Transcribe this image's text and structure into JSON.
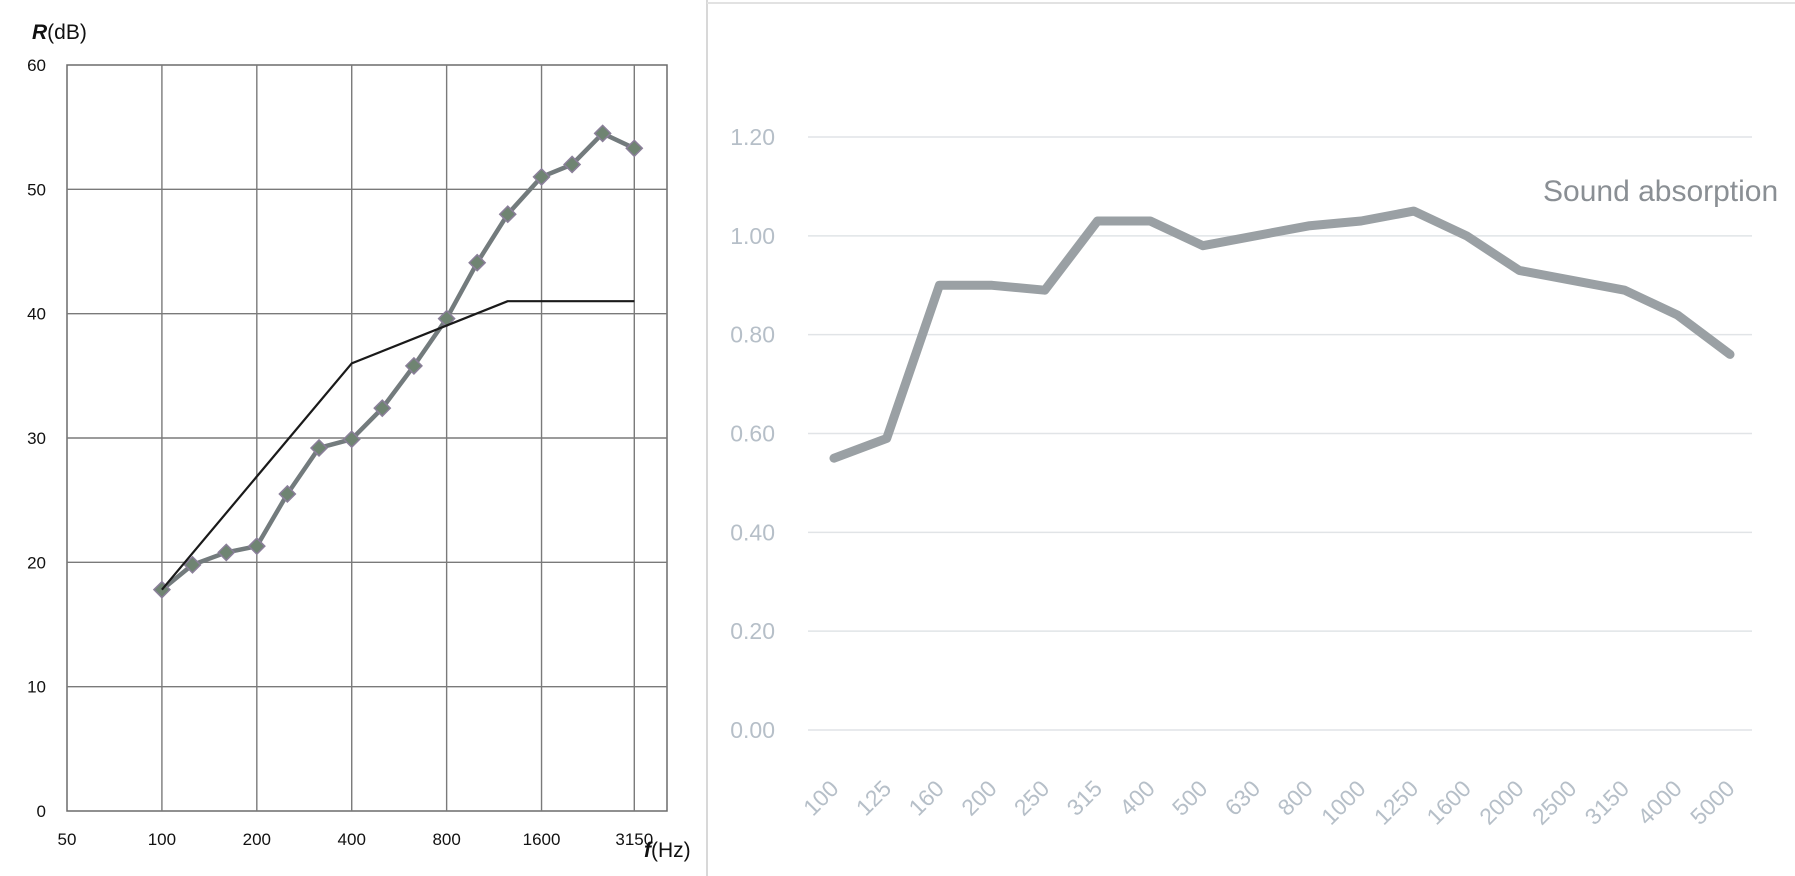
{
  "chart_data": [
    {
      "type": "line",
      "title": "",
      "ylabel": {
        "symbol": "R",
        "unit": "(dB)"
      },
      "xlabel": {
        "symbol": "f",
        "unit": "(Hz)"
      },
      "x_scale": "log2",
      "xlim": [
        50,
        4000
      ],
      "ylim": [
        0,
        60
      ],
      "x_ticks": [
        50,
        100,
        200,
        400,
        800,
        1600,
        3150
      ],
      "y_ticks": [
        0,
        10,
        20,
        30,
        40,
        50,
        60
      ],
      "grid": true,
      "series": [
        {
          "name": "",
          "color": "#737b7d",
          "marker": "diamond",
          "x": [
            100,
            125,
            160,
            200,
            250,
            315,
            400,
            500,
            630,
            800,
            1000,
            1250,
            1600,
            2000,
            2500,
            3150
          ],
          "y": [
            17.8,
            19.8,
            20.8,
            21.3,
            25.5,
            29.2,
            29.9,
            32.4,
            35.8,
            39.6,
            44.1,
            48.0,
            51.0,
            52.0,
            54.5,
            53.3
          ]
        },
        {
          "name": "",
          "color": "#1a1a1a",
          "marker": "none",
          "x": [
            100,
            400,
            1250,
            3150
          ],
          "y": [
            17.8,
            36.0,
            41.0,
            41.0
          ]
        }
      ]
    },
    {
      "type": "line",
      "title": "",
      "xlabel": "",
      "ylabel": "",
      "categories": [
        "100",
        "125",
        "160",
        "200",
        "250",
        "315",
        "400",
        "500",
        "630",
        "800",
        "1000",
        "1250",
        "1600",
        "2000",
        "2500",
        "3150",
        "4000",
        "5000"
      ],
      "y_ticks": [
        "0.00",
        "0.20",
        "0.40",
        "0.60",
        "0.80",
        "1.00",
        "1.20"
      ],
      "ylim": [
        0,
        1.2
      ],
      "grid": true,
      "series": [
        {
          "name": "Sound absorption",
          "color": "#9aa0a4",
          "values": [
            0.55,
            0.59,
            0.9,
            0.9,
            0.89,
            1.03,
            1.03,
            0.98,
            1.0,
            1.02,
            1.03,
            1.05,
            1.0,
            0.93,
            0.91,
            0.89,
            0.84,
            0.76
          ]
        }
      ]
    }
  ]
}
